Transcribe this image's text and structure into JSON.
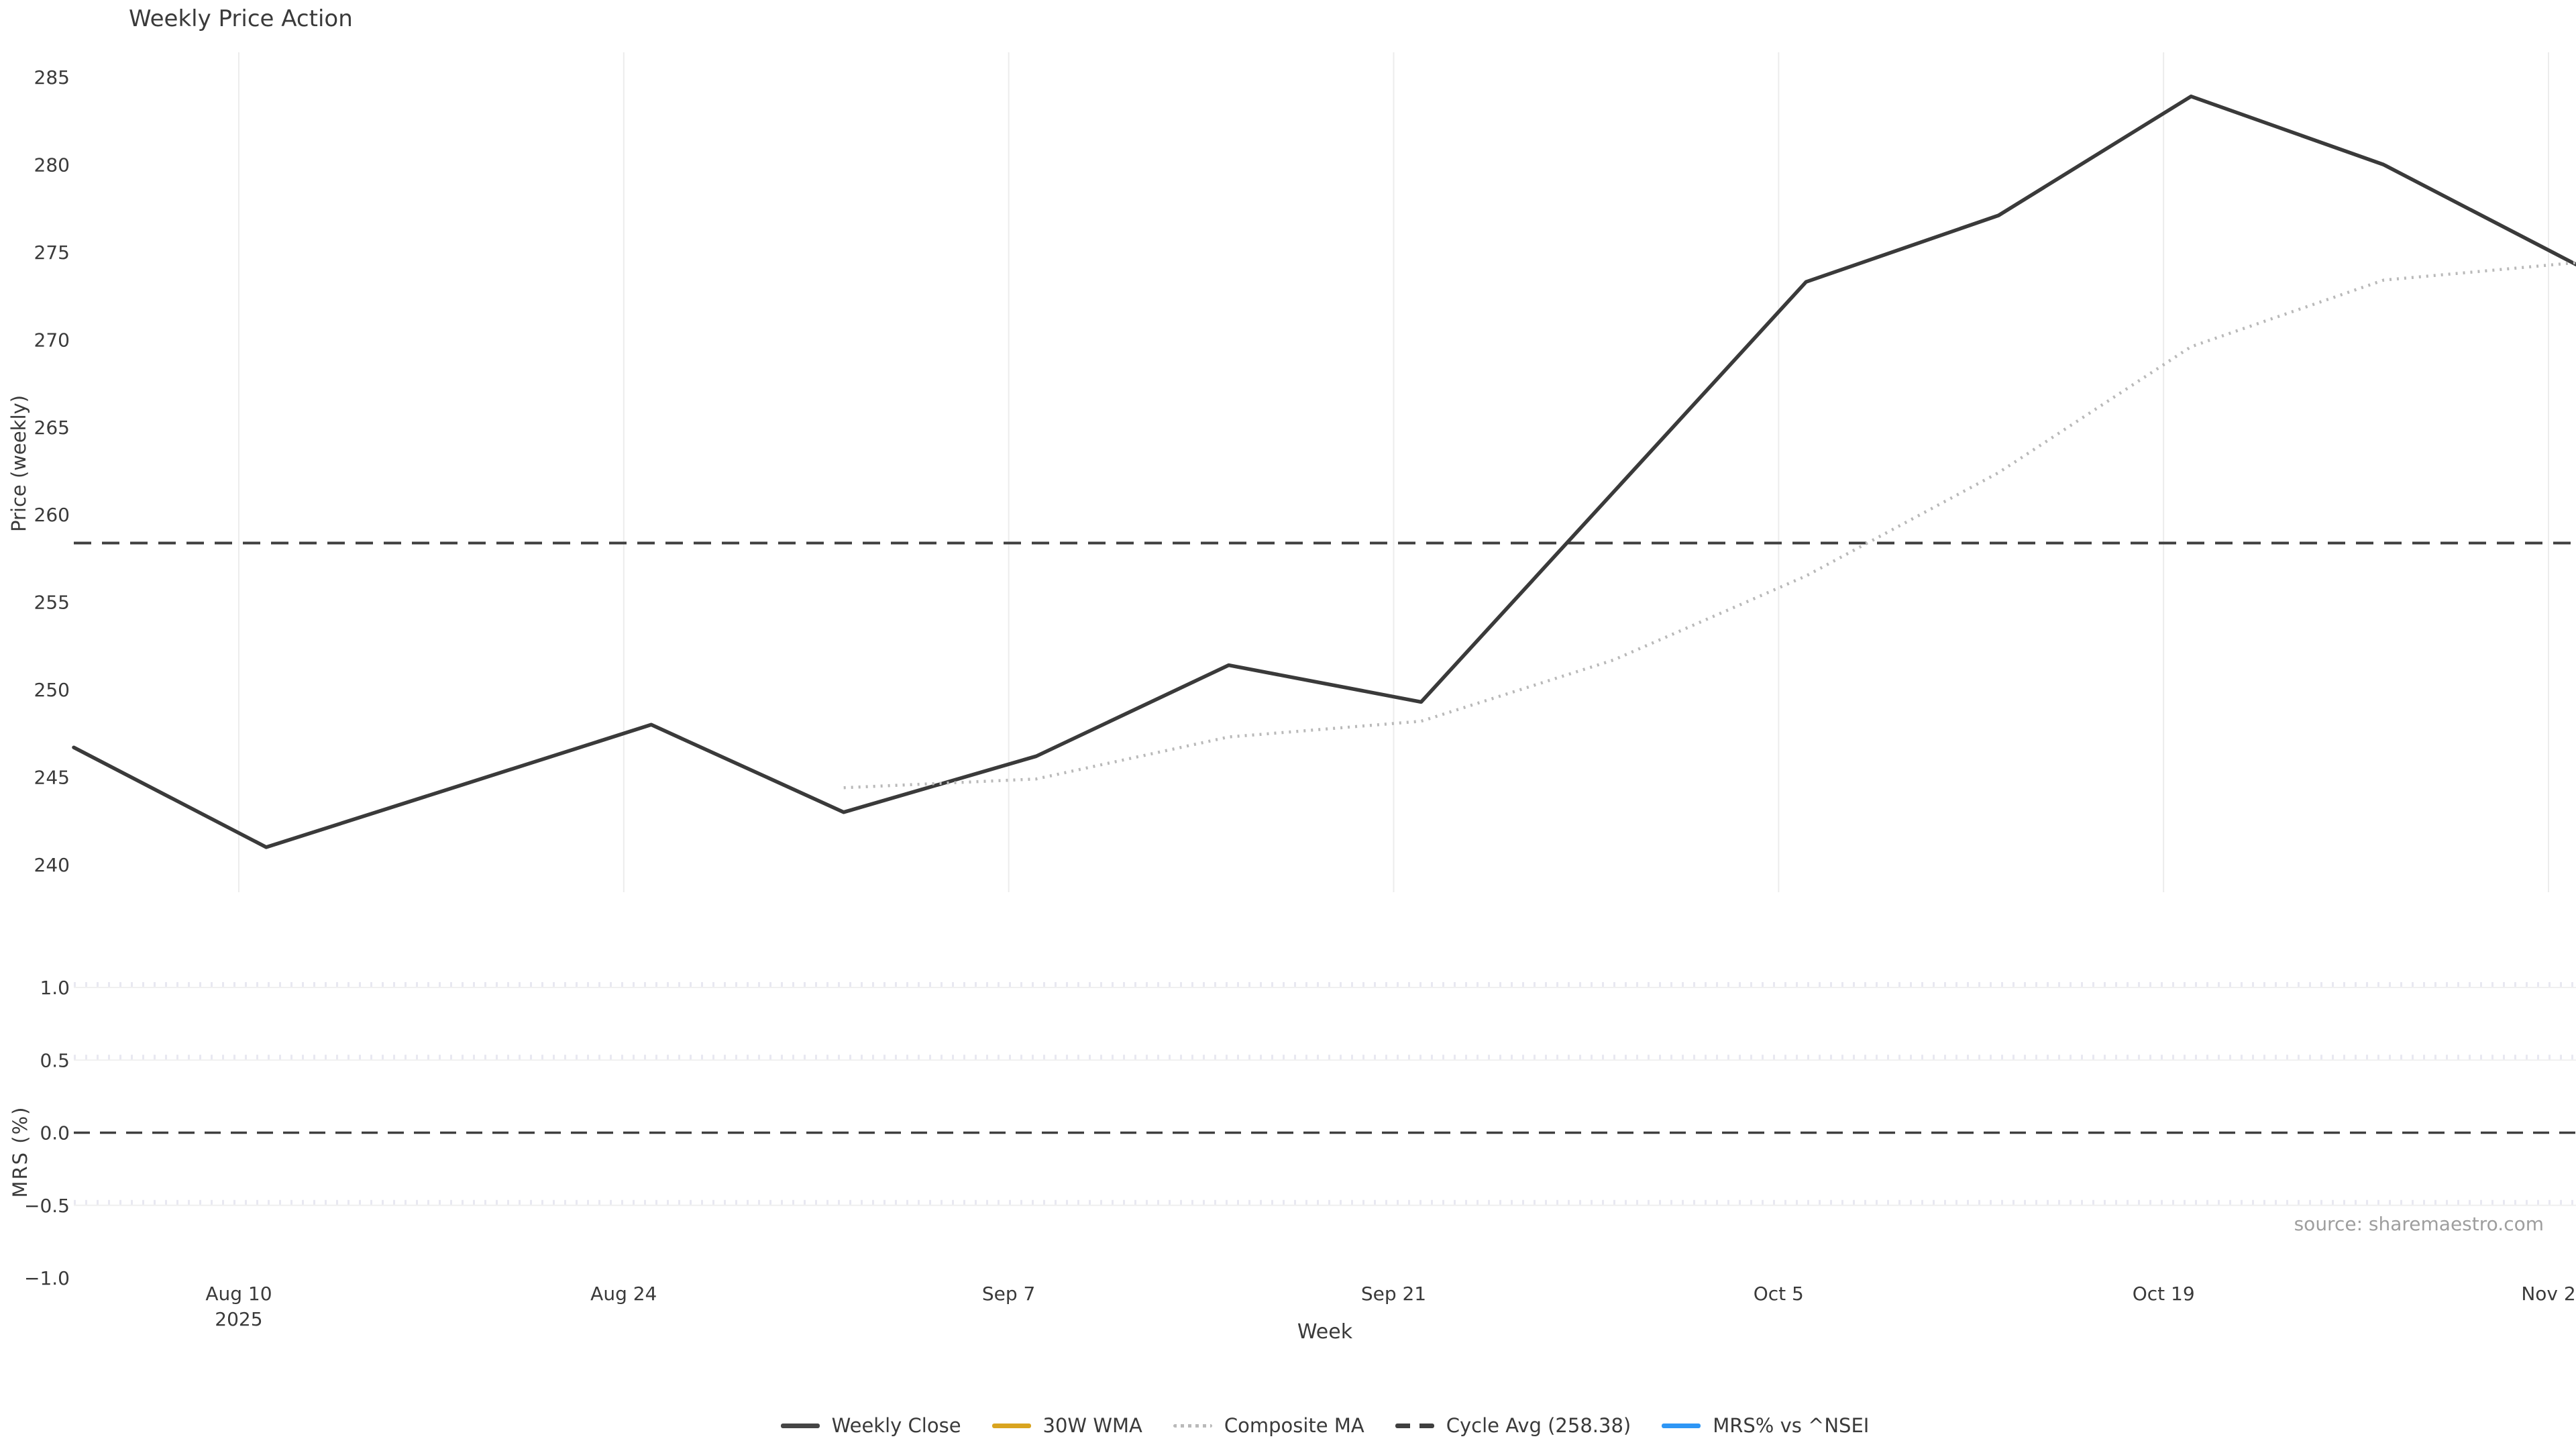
{
  "title": "Weekly Price Action",
  "source": "source: sharemaestro.com",
  "axes": {
    "price_ylabel": "Price (weekly)",
    "mrs_ylabel": "MRS (%)",
    "xlabel": "Week",
    "xticks": [
      "Aug 10",
      "Aug 24",
      "Sep 7",
      "Sep 21",
      "Oct 5",
      "Oct 19",
      "Nov 2"
    ],
    "xtick_year": "2025",
    "price_yticks": [
      285,
      280,
      275,
      270,
      265,
      260,
      255,
      250,
      245,
      240
    ],
    "mrs_yticks": [
      "1.0",
      "0.5",
      "0.0",
      "−0.5",
      "−1.0"
    ]
  },
  "legend": [
    {
      "label": "Weekly Close",
      "color": "#454545",
      "style": "solid"
    },
    {
      "label": "30W WMA",
      "color": "#d9a41f",
      "style": "solid"
    },
    {
      "label": "Composite MA",
      "color": "#b9b9b9",
      "style": "dotted"
    },
    {
      "label": "Cycle Avg (258.38)",
      "color": "#3f3f3f",
      "style": "dashed"
    },
    {
      "label": "MRS% vs ^NSEI",
      "color": "#2e96f5",
      "style": "solid"
    }
  ],
  "chart_data": {
    "type": "line",
    "title": "Weekly Price Action",
    "xlabel": "Week",
    "x_year": "2025",
    "x": [
      "Aug 4",
      "Aug 11",
      "Aug 18",
      "Aug 25",
      "Sep 1",
      "Sep 8",
      "Sep 15",
      "Sep 22",
      "Sep 29",
      "Oct 6",
      "Oct 13",
      "Oct 20",
      "Oct 27",
      "Nov 3"
    ],
    "series": [
      {
        "name": "Weekly Close",
        "panel": "price",
        "style": "solid",
        "color": "#3a3a3a",
        "values": [
          246.7,
          241.0,
          244.5,
          248.0,
          243.0,
          246.2,
          251.4,
          249.3,
          261.3,
          273.3,
          277.1,
          283.9,
          280.0,
          274.3
        ]
      },
      {
        "name": "Composite MA",
        "panel": "price",
        "style": "dotted",
        "color": "#b9b9b9",
        "values": [
          null,
          null,
          null,
          null,
          244.4,
          244.9,
          247.3,
          248.2,
          251.7,
          256.5,
          262.4,
          269.6,
          273.4,
          274.4
        ]
      },
      {
        "name": "30W WMA",
        "panel": "price",
        "style": "solid",
        "color": "#d9a41f",
        "values": []
      },
      {
        "name": "MRS% vs ^NSEI",
        "panel": "mrs",
        "style": "solid",
        "color": "#2e96f5",
        "values": []
      }
    ],
    "cycle_avg": 258.38,
    "price_axis": {
      "ylabel": "Price (weekly)",
      "ticks": [
        240,
        245,
        250,
        255,
        260,
        265,
        270,
        275,
        280,
        285
      ],
      "ylim": [
        237.9,
        286.5
      ],
      "grid": "vertical"
    },
    "mrs_axis": {
      "ylabel": "MRS (%)",
      "ticks": [
        1.0,
        0.5,
        0.0,
        -0.5,
        -1.0
      ],
      "ylim": [
        -1.06,
        1.12
      ],
      "zero_line": 0.0,
      "threshold_lines": [
        1.0,
        0.5,
        -0.5
      ],
      "grid": "horizontal"
    },
    "legend_position": "bottom-center"
  }
}
